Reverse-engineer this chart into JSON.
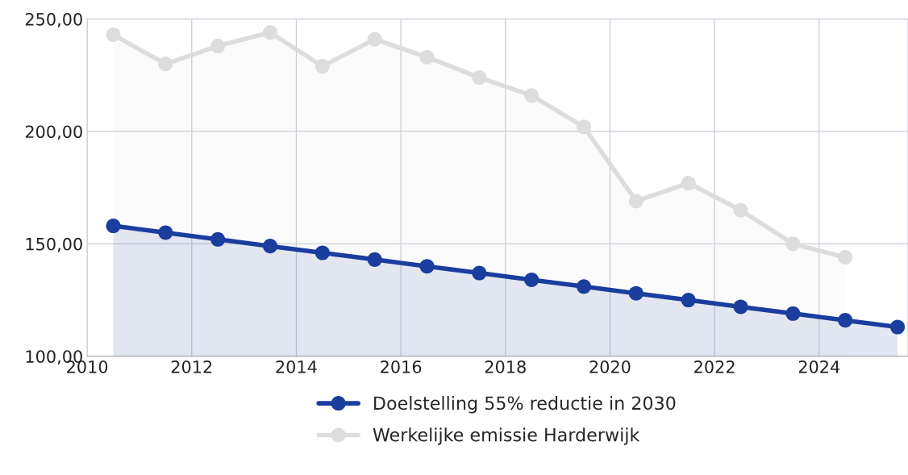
{
  "chart_data": {
    "type": "area",
    "x": [
      2010.5,
      2011.5,
      2012.5,
      2013.5,
      2014.5,
      2015.5,
      2016.5,
      2017.5,
      2018.5,
      2019.5,
      2020.5,
      2021.5,
      2022.5,
      2023.5,
      2024.5,
      2025.5
    ],
    "series": [
      {
        "name": "Doelstelling 55% reductie in 2030",
        "color": "#1a3d9e",
        "values": [
          158,
          155,
          152,
          149,
          146,
          143,
          140,
          137,
          134,
          131,
          128,
          125,
          122,
          119,
          116,
          113
        ]
      },
      {
        "name": "Werkelijke emissie Harderwijk",
        "color": "#dddddd",
        "values": [
          243,
          230,
          238,
          244,
          229,
          241,
          233,
          224,
          216,
          202,
          169,
          177,
          165,
          150,
          144,
          null
        ]
      }
    ],
    "xlim": [
      2010,
      2025.7
    ],
    "xticks": [
      2010,
      2012,
      2014,
      2016,
      2018,
      2020,
      2022,
      2024
    ],
    "ylim": [
      100,
      250
    ],
    "yticks": [
      {
        "value": 100,
        "label": "100,00"
      },
      {
        "value": 150,
        "label": "150,00"
      },
      {
        "value": 200,
        "label": "200,00"
      },
      {
        "value": 250,
        "label": "250,00"
      }
    ],
    "grid": true,
    "legend": "bottom",
    "marker": "circle",
    "line_style": "solid"
  }
}
